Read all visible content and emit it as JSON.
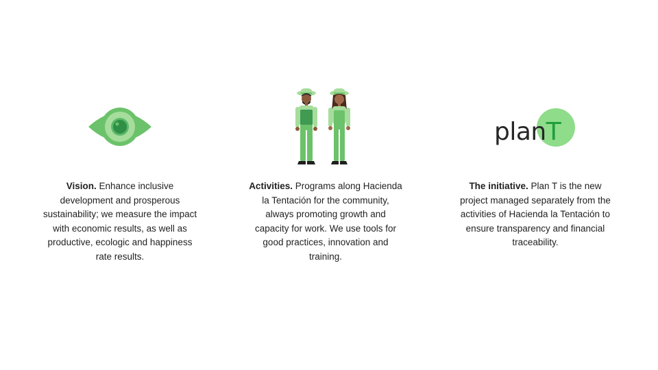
{
  "columns": [
    {
      "heading": "Vision.",
      "body": " Enhance inclusive development and prosperous sustainability; we measure the impact with economic results, as well as productive, ecologic and happiness rate results.",
      "icon": "eye-icon"
    },
    {
      "heading": "Activities.",
      "body": " Programs along Hacienda la Tentación for the community, always promoting growth and capacity for work. We use tools for good practices, innovation and training.",
      "icon": "farm-workers-illustration"
    },
    {
      "heading": "The initiative.",
      "body": " Plan T is the new project managed separately from the activities of Hacienda la Tentación to ensure transparency and financial traceability.",
      "icon": "plant-logo"
    }
  ],
  "logo": {
    "word": "plan",
    "letter": "T"
  },
  "colors": {
    "green_light": "#a6dd9c",
    "green_mid": "#6cc26a",
    "green_dark": "#2f8f47",
    "logo_circle": "#8fdc8a",
    "logo_t": "#1e9e3c",
    "text": "#1f1f1f"
  }
}
